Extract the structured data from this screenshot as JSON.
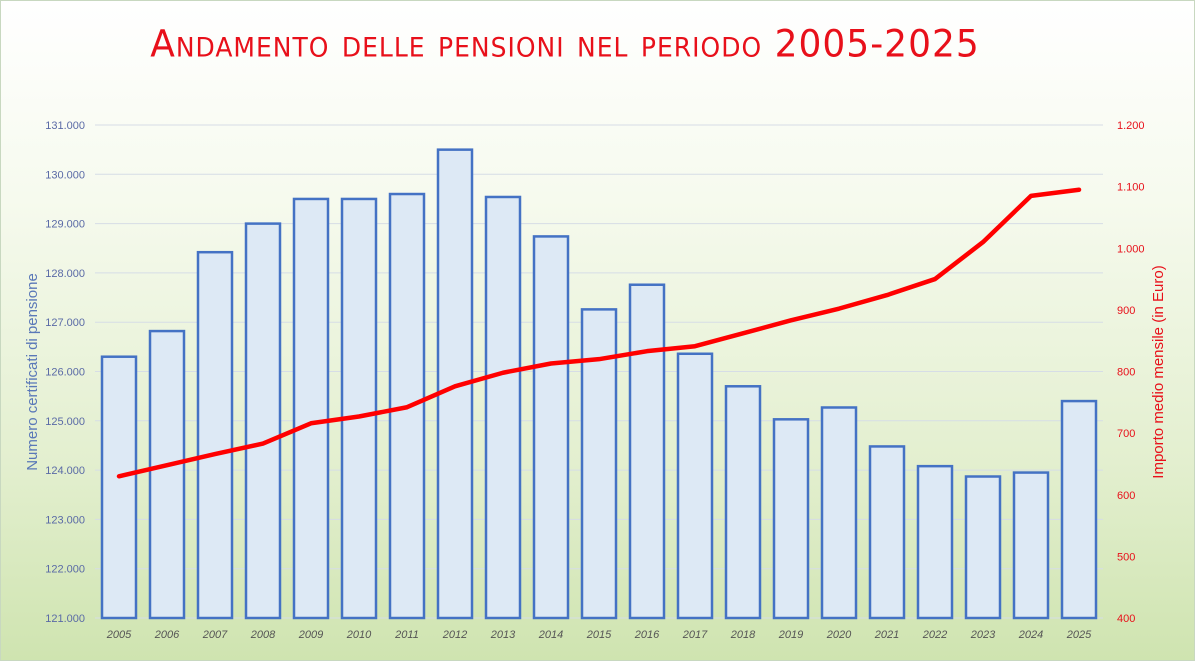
{
  "chart_data": {
    "type": "bar",
    "title": "Andamento delle pensioni nel periodo 2005-2025",
    "categories": [
      "2005",
      "2006",
      "2007",
      "2008",
      "2009",
      "2010",
      "2011",
      "2012",
      "2013",
      "2014",
      "2015",
      "2016",
      "2017",
      "2018",
      "2019",
      "2020",
      "2021",
      "2022",
      "2023",
      "2024",
      "2025"
    ],
    "series": [
      {
        "type": "bar",
        "axis": "left",
        "values": [
          126300,
          126820,
          128420,
          129000,
          129500,
          129500,
          129600,
          130500,
          129540,
          128740,
          127260,
          127760,
          126360,
          125700,
          125030,
          125270,
          124480,
          124080,
          123870,
          123950,
          125400
        ]
      },
      {
        "type": "line",
        "axis": "right",
        "values": [
          630,
          648,
          666,
          683,
          716,
          727,
          742,
          776,
          798,
          813,
          820,
          833,
          841,
          862,
          883,
          902,
          924,
          950,
          1010,
          1085,
          1095
        ]
      }
    ],
    "ylabel": "Numero certificati di pensione",
    "ylabel_right": "Importo medio mensile (in Euro)",
    "ylim": [
      121000,
      131000
    ],
    "ylim_right": [
      400,
      1200
    ],
    "yticks": [
      "121.000",
      "122.000",
      "123.000",
      "124.000",
      "125.000",
      "126.000",
      "127.000",
      "128.000",
      "129.000",
      "130.000",
      "131.000"
    ],
    "yticks_right": [
      "400",
      "500",
      "600",
      "700",
      "800",
      "900",
      "1.000",
      "1.100",
      "1.200"
    ],
    "grid": true,
    "colors": {
      "bar_fill": "#dde9f5",
      "bar_stroke": "#4472c4",
      "line": "#ff0000",
      "title": "#e8101a"
    }
  }
}
